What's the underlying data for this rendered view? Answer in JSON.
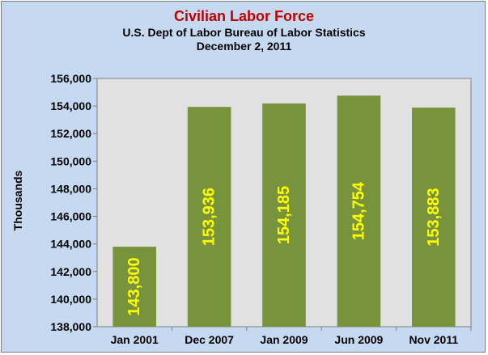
{
  "chart_data": {
    "type": "bar",
    "title": "Civilian Labor Force",
    "subtitle_lines": [
      "U.S. Dept of Labor Bureau of Labor Statistics",
      "December 2, 2011"
    ],
    "xlabel": "",
    "ylabel": "Thousands",
    "categories": [
      "Jan 2001",
      "Dec 2007",
      "Jan 2009",
      "Jun 2009",
      "Nov 2011"
    ],
    "values": [
      143800,
      153936,
      154185,
      154754,
      153883
    ],
    "value_labels": [
      "143,800",
      "153,936",
      "154,185",
      "154,754",
      "153,883"
    ],
    "ylim": [
      138000,
      156000
    ],
    "yticks": [
      138000,
      140000,
      142000,
      144000,
      146000,
      148000,
      150000,
      152000,
      154000,
      156000
    ],
    "ytick_labels": [
      "138,000",
      "140,000",
      "142,000",
      "144,000",
      "146,000",
      "148,000",
      "150,000",
      "152,000",
      "154,000",
      "156,000"
    ],
    "grid": false,
    "legend": "none",
    "colors": {
      "bar": "#77933c",
      "plot_area": "#e1e1e1",
      "chart_area": "#c5d9f1",
      "title": "#c00000",
      "data_label": "#ffff00"
    }
  }
}
